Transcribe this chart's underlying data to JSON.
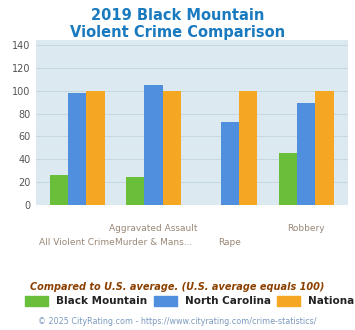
{
  "title_line1": "2019 Black Mountain",
  "title_line2": "Violent Crime Comparison",
  "title_color": "#1a7abf",
  "top_labels": [
    "",
    "Aggravated Assault",
    "",
    "Robbery"
  ],
  "bot_labels": [
    "All Violent Crime",
    "Murder & Mans...",
    "Rape",
    ""
  ],
  "black_mountain": [
    26,
    24,
    0,
    45
  ],
  "north_carolina": [
    98,
    105,
    73,
    89
  ],
  "national": [
    100,
    100,
    100,
    100
  ],
  "bm_color": "#6abf3a",
  "nc_color": "#4f8fde",
  "nat_color": "#f5a623",
  "ylim": [
    0,
    145
  ],
  "yticks": [
    0,
    20,
    40,
    60,
    80,
    100,
    120,
    140
  ],
  "grid_color": "#c8d8e0",
  "bg_color": "#dce9f0",
  "legend_labels": [
    "Black Mountain",
    "North Carolina",
    "National"
  ],
  "footnote1": "Compared to U.S. average. (U.S. average equals 100)",
  "footnote2": "© 2025 CityRating.com - https://www.cityrating.com/crime-statistics/",
  "footnote1_color": "#8b4000",
  "footnote2_color": "#7a9abf"
}
